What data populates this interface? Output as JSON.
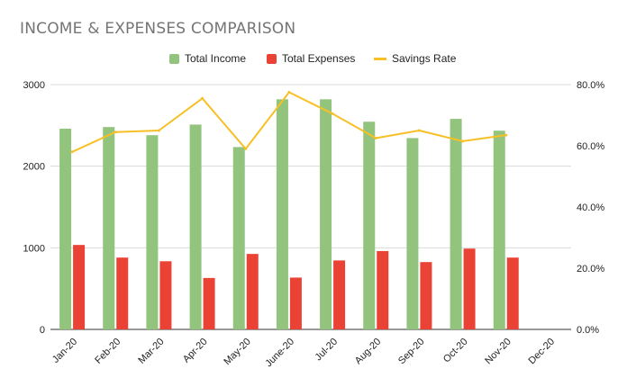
{
  "chart_data": {
    "type": "bar",
    "title": "INCOME & EXPENSES COMPARISON",
    "categories": [
      "Jan-20",
      "Feb-20",
      "Mar-20",
      "Apr-20",
      "May-20",
      "June-20",
      "Jul-20",
      "Aug-20",
      "Sep-20",
      "Oct-20",
      "Nov-20",
      "Dec-20"
    ],
    "series": [
      {
        "name": "Total Income",
        "type": "bar",
        "axis": "left",
        "color": "#93c47d",
        "values": [
          2460,
          2480,
          2380,
          2510,
          2235,
          2820,
          2820,
          2545,
          2345,
          2580,
          2435,
          null
        ]
      },
      {
        "name": "Total Expenses",
        "type": "bar",
        "axis": "left",
        "color": "#ea4335",
        "values": [
          1035,
          880,
          835,
          630,
          925,
          635,
          845,
          960,
          825,
          990,
          880,
          null
        ]
      },
      {
        "name": "Savings Rate",
        "type": "line",
        "axis": "right",
        "color": "#f6c026",
        "values": [
          58.0,
          64.5,
          65.0,
          75.5,
          59.0,
          77.5,
          70.5,
          62.5,
          65.0,
          61.5,
          63.5,
          null
        ]
      }
    ],
    "y_left": {
      "ylim": [
        0,
        3000
      ],
      "ticks": [
        "0",
        "1000",
        "2000",
        "3000"
      ]
    },
    "y_right": {
      "ylim": [
        0,
        80
      ],
      "ticks": [
        "0.0%",
        "20.0%",
        "40.0%",
        "60.0%",
        "80.0%"
      ]
    },
    "grid": true,
    "legend_position": "top"
  }
}
